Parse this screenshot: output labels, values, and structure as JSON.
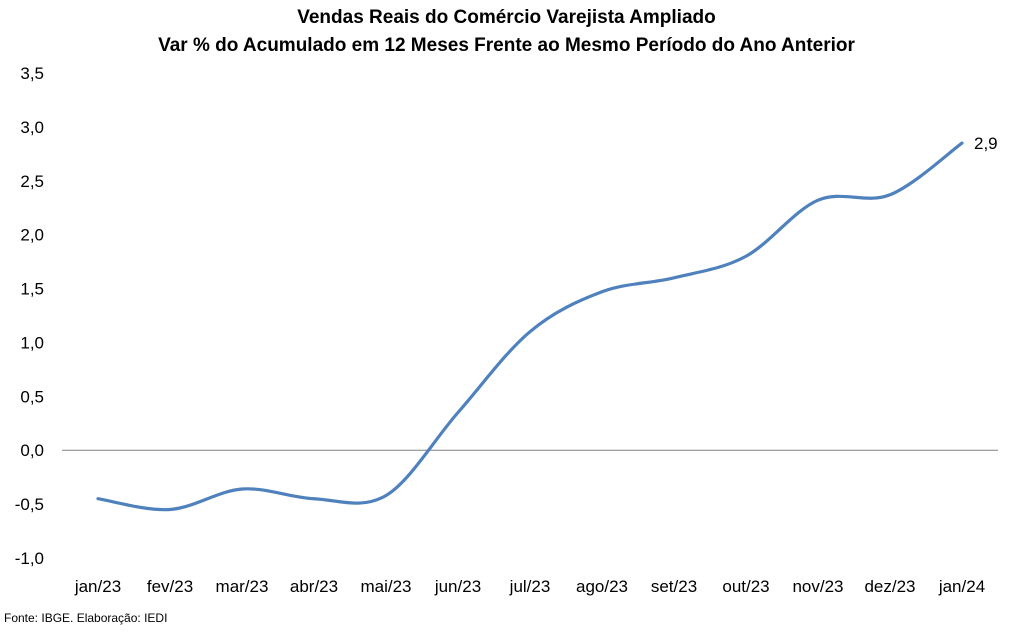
{
  "chart_data": {
    "type": "line",
    "title": "Vendas Reais do Comércio Varejista Ampliado",
    "subtitle": "Var % do Acumulado em 12 Meses Frente ao Mesmo Período do Ano Anterior",
    "categories": [
      "jan/23",
      "fev/23",
      "mar/23",
      "abr/23",
      "mai/23",
      "jun/23",
      "jul/23",
      "ago/23",
      "set/23",
      "out/23",
      "nov/23",
      "dez/23",
      "jan/24"
    ],
    "series": [
      {
        "values": [
          -0.45,
          -0.55,
          -0.36,
          -0.45,
          -0.42,
          0.35,
          1.1,
          1.47,
          1.6,
          1.8,
          2.32,
          2.37,
          2.85
        ]
      }
    ],
    "y_ticks": [
      "3,5",
      "3,0",
      "2,5",
      "2,0",
      "1,5",
      "1,0",
      "0,5",
      "0,0",
      "-0,5",
      "-1,0"
    ],
    "ylim": [
      -1.0,
      3.5
    ],
    "data_labels": [
      {
        "category": "jan/24",
        "text": "2,9"
      }
    ],
    "grid": false,
    "legend": "none",
    "colors": {
      "line": "#4f81bd",
      "axis": "#808080"
    },
    "source": "Fonte: IBGE. Elaboração: IEDI"
  }
}
